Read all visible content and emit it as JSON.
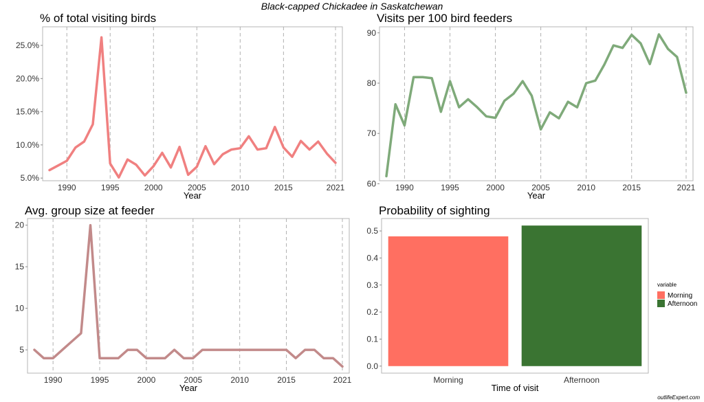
{
  "title": "Black-capped Chickadee in Saskatchewan",
  "watermark": "outlifeExpert.com",
  "chart_data": [
    {
      "type": "line",
      "title": "% of total visiting birds",
      "xlabel": "Year",
      "ylabel": "",
      "color": "#f08080",
      "xlim": [
        1988,
        2021
      ],
      "ylim": [
        4.6,
        27.8
      ],
      "xticks": [
        1990,
        1995,
        2000,
        2005,
        2010,
        2015,
        2021
      ],
      "xtick_labels": [
        "1990",
        "1995",
        "2000",
        "2005",
        "2010",
        "2015",
        "2021"
      ],
      "yticks": [
        5,
        10,
        15,
        20,
        25
      ],
      "ytick_labels": [
        "5.0%",
        "10.0%",
        "15.0%",
        "20.0%",
        "25.0%"
      ],
      "x": [
        1988,
        1989,
        1990,
        1991,
        1992,
        1993,
        1994,
        1995,
        1996,
        1997,
        1998,
        1999,
        2000,
        2001,
        2002,
        2003,
        2004,
        2005,
        2006,
        2007,
        2008,
        2009,
        2010,
        2011,
        2012,
        2013,
        2014,
        2015,
        2016,
        2017,
        2018,
        2019,
        2020,
        2021
      ],
      "values": [
        6.2,
        6.9,
        7.6,
        9.6,
        10.5,
        13.1,
        26.2,
        7.2,
        5.1,
        7.8,
        7.0,
        5.4,
        6.8,
        8.8,
        6.6,
        9.7,
        5.5,
        6.7,
        9.8,
        7.1,
        8.6,
        9.3,
        9.5,
        11.3,
        9.3,
        9.5,
        12.7,
        9.6,
        8.2,
        10.6,
        9.3,
        10.5,
        8.7,
        7.3
      ]
    },
    {
      "type": "line",
      "title": "Visits per 100 bird feeders",
      "xlabel": "Year",
      "ylabel": "",
      "color": "#7faa7a",
      "xlim": [
        1988,
        2021
      ],
      "ylim": [
        60.6,
        91.2
      ],
      "xticks": [
        1990,
        1995,
        2000,
        2005,
        2010,
        2015,
        2021
      ],
      "xtick_labels": [
        "1990",
        "1995",
        "2000",
        "2005",
        "2010",
        "2015",
        "2021"
      ],
      "yticks": [
        60,
        70,
        80,
        90
      ],
      "ytick_labels": [
        "60",
        "70",
        "80",
        "90"
      ],
      "x": [
        1988,
        1989,
        1990,
        1991,
        1992,
        1993,
        1994,
        1995,
        1996,
        1997,
        1998,
        1999,
        2000,
        2001,
        2002,
        2003,
        2004,
        2005,
        2006,
        2007,
        2008,
        2009,
        2010,
        2011,
        2012,
        2013,
        2014,
        2015,
        2016,
        2017,
        2018,
        2019,
        2020,
        2021
      ],
      "values": [
        61.5,
        75.8,
        71.6,
        81.2,
        81.2,
        81.0,
        74.3,
        80.4,
        75.2,
        76.8,
        75.2,
        73.4,
        73.1,
        76.5,
        77.9,
        80.4,
        77.5,
        70.8,
        74.2,
        73.0,
        76.3,
        75.2,
        80.0,
        80.5,
        83.7,
        87.5,
        87.0,
        89.6,
        87.9,
        83.8,
        89.7,
        86.8,
        85.2,
        78.1
      ]
    },
    {
      "type": "line",
      "title": "Avg. group size at feeder",
      "xlabel": "Year",
      "ylabel": "",
      "color": "#c28a8a",
      "xlim": [
        1988,
        2021
      ],
      "ylim": [
        2.2,
        20.8
      ],
      "xticks": [
        1990,
        1995,
        2000,
        2005,
        2010,
        2015,
        2021
      ],
      "xtick_labels": [
        "1990",
        "1995",
        "2000",
        "2005",
        "2010",
        "2015",
        "2021"
      ],
      "yticks": [
        5,
        10,
        15,
        20
      ],
      "ytick_labels": [
        "5",
        "10",
        "15",
        "20"
      ],
      "x": [
        1988,
        1989,
        1990,
        1991,
        1992,
        1993,
        1994,
        1995,
        1996,
        1997,
        1998,
        1999,
        2000,
        2001,
        2002,
        2003,
        2004,
        2005,
        2006,
        2007,
        2008,
        2009,
        2010,
        2011,
        2012,
        2013,
        2014,
        2015,
        2016,
        2017,
        2018,
        2019,
        2020,
        2021
      ],
      "values": [
        5,
        4,
        4,
        5,
        6,
        7,
        20,
        4,
        4,
        4,
        5,
        5,
        4,
        4,
        4,
        5,
        4,
        4,
        5,
        5,
        5,
        5,
        5,
        5,
        5,
        5,
        5,
        5,
        4,
        5,
        5,
        4,
        4,
        3
      ]
    },
    {
      "type": "bar",
      "title": "Probability of sighting",
      "xlabel": "Time of visit",
      "ylabel": "",
      "categories": [
        "Morning",
        "Afternoon"
      ],
      "values": [
        0.48,
        0.52
      ],
      "colors": [
        "#ff6f61",
        "#3a7432"
      ],
      "ylim": [
        -0.026,
        0.546
      ],
      "yticks": [
        0.0,
        0.1,
        0.2,
        0.3,
        0.4,
        0.5
      ],
      "ytick_labels": [
        "0.0",
        "0.1",
        "0.2",
        "0.3",
        "0.4",
        "0.5"
      ],
      "legend": {
        "title": "variable",
        "position": "right",
        "entries": [
          {
            "label": "Morning",
            "color": "#ff6f61"
          },
          {
            "label": "Afternoon",
            "color": "#3a7432"
          }
        ]
      }
    }
  ]
}
